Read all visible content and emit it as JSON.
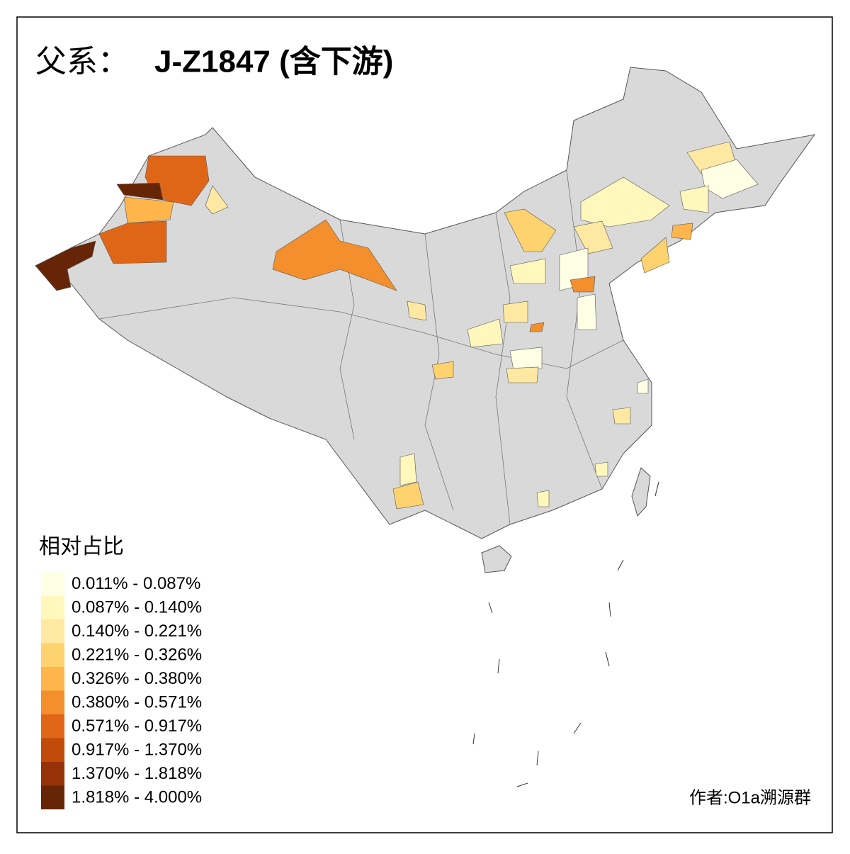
{
  "header": {
    "title_prefix": "父系：",
    "title_main": "J-Z1847 (含下游)"
  },
  "legend": {
    "title": "相对占比",
    "items": [
      {
        "label": "0.011% - 0.087%",
        "color": "#ffffe5"
      },
      {
        "label": "0.087% - 0.140%",
        "color": "#fff7bc"
      },
      {
        "label": "0.140% - 0.221%",
        "color": "#fee8a2"
      },
      {
        "label": "0.221% - 0.326%",
        "color": "#fed36f"
      },
      {
        "label": "0.326% - 0.380%",
        "color": "#feb54c"
      },
      {
        "label": "0.380% - 0.571%",
        "color": "#f38f2c"
      },
      {
        "label": "0.571% - 0.917%",
        "color": "#e06617"
      },
      {
        "label": "0.917% - 1.370%",
        "color": "#c24a0a"
      },
      {
        "label": "1.370% - 1.818%",
        "color": "#953207"
      },
      {
        "label": "1.818% - 4.000%",
        "color": "#662506"
      }
    ]
  },
  "credit": "作者:O1a溯源群"
}
